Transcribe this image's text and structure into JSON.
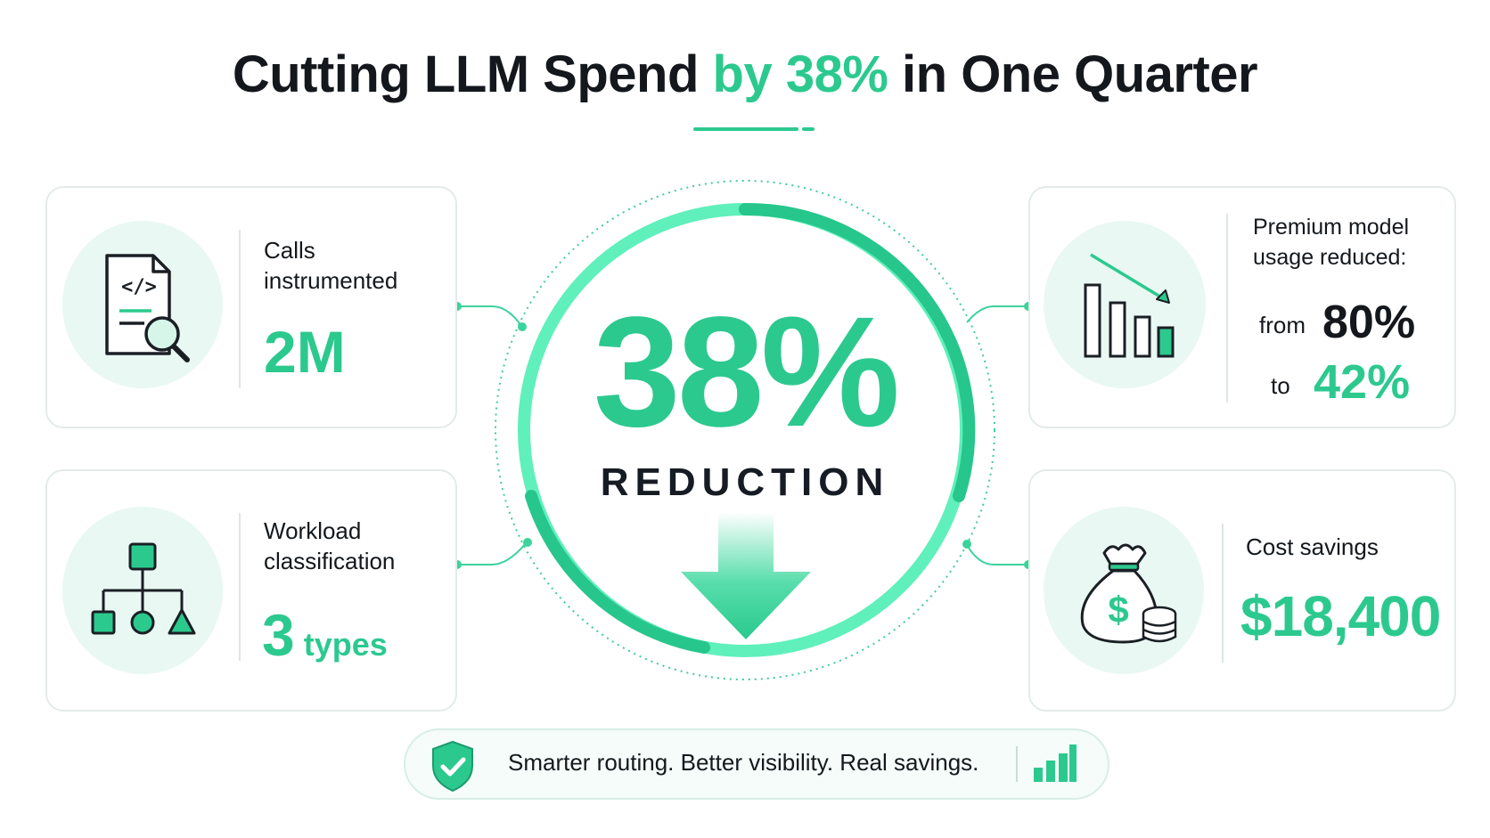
{
  "title": {
    "part1": "Cutting LLM Spend ",
    "accent": "by 38%",
    "part2": " in One Quarter"
  },
  "hero": {
    "value": "38%",
    "label": "REDUCTION"
  },
  "cards": {
    "calls": {
      "label_line1": "Calls",
      "label_line2": "instrumented",
      "value": "2M"
    },
    "workload": {
      "label_line1": "Workload",
      "label_line2": "classification",
      "value_number": "3",
      "value_unit": " types"
    },
    "premium": {
      "label_line1": "Premium model",
      "label_line2": "usage reduced:",
      "from_word": "from",
      "from_value": "80%",
      "to_word": "to",
      "to_value": "42%"
    },
    "savings": {
      "label": "Cost savings",
      "value": "$18,400"
    }
  },
  "footer": {
    "text": "Smarter routing. Better visibility. Real savings."
  },
  "colors": {
    "accent": "#2cc98f",
    "accent_light": "#e9f8f2",
    "text": "#14181c"
  },
  "icons": {
    "calls": "code-document-search-icon",
    "workload": "hierarchy-shapes-icon",
    "premium": "declining-bars-icon",
    "savings": "money-bag-coins-icon",
    "hero_arrow": "down-arrow-icon",
    "footer_shield": "shield-check-icon",
    "footer_chart": "bar-chart-icon"
  }
}
